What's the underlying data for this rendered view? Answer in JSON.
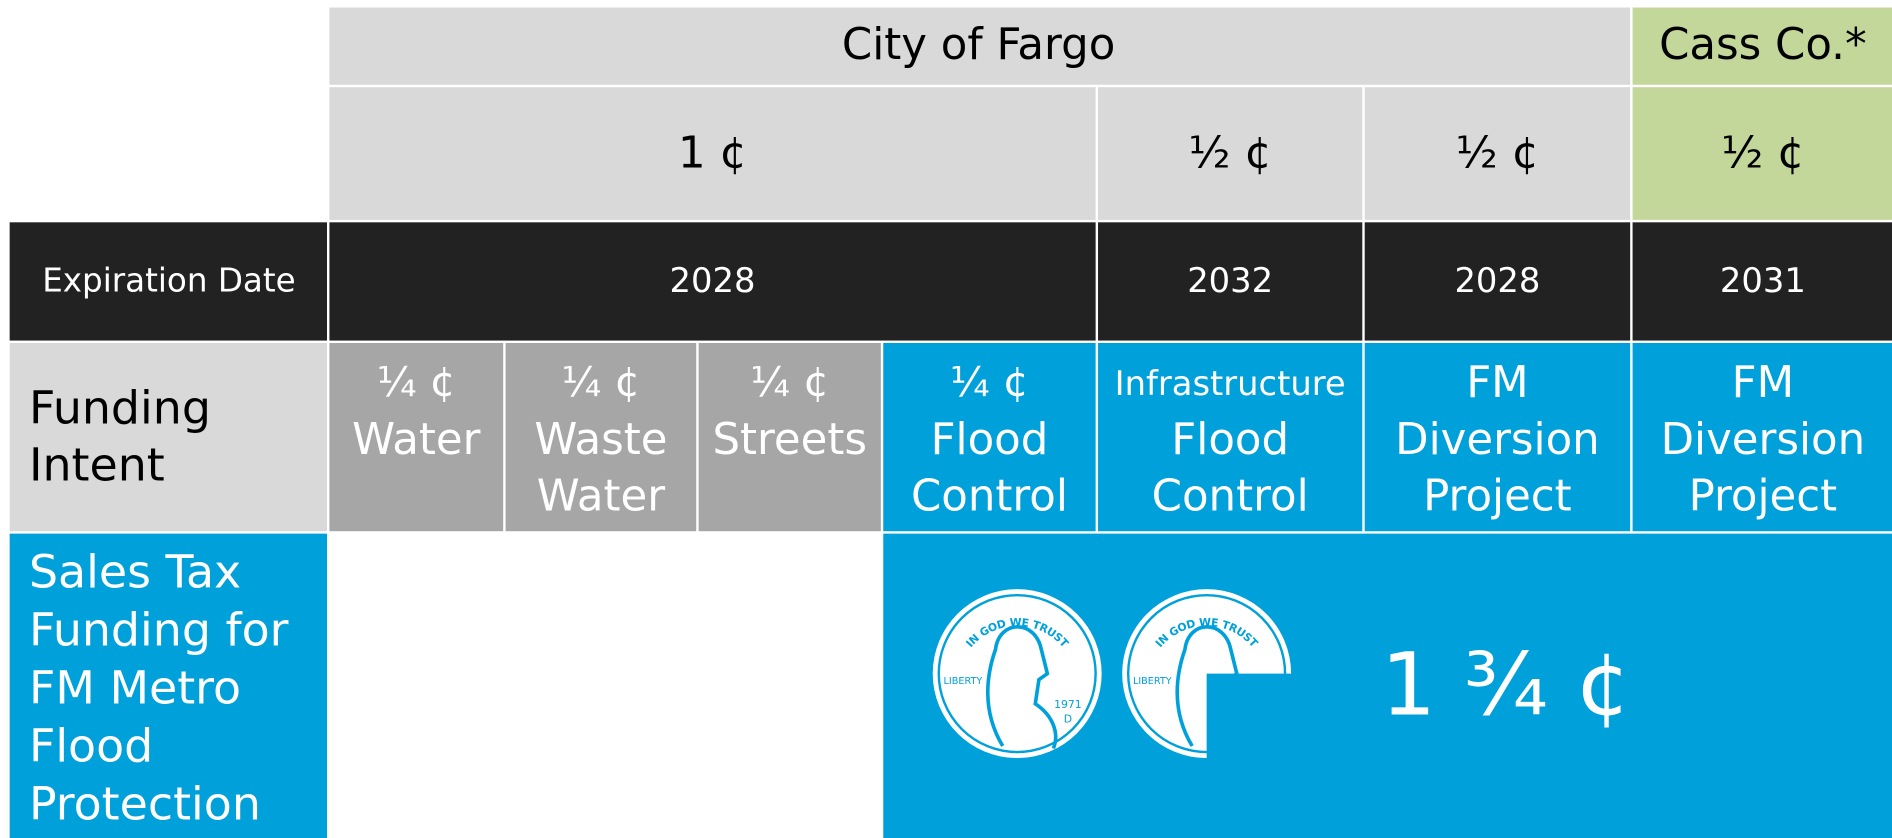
{
  "jurisdictions": [
    "City of Fargo",
    "Cass Co.*"
  ],
  "rates": [
    "1 ¢",
    "½ ¢",
    "½ ¢",
    "½ ¢"
  ],
  "expiration": {
    "label": "Expiration Date",
    "dates": [
      "2028",
      "2032",
      "2028",
      "2031"
    ]
  },
  "funding_intent": {
    "label": [
      "Funding",
      "Intent"
    ],
    "items": [
      [
        "¼ ¢",
        "Water"
      ],
      [
        "¼ ¢",
        "Waste",
        "Water"
      ],
      [
        "¼ ¢",
        "Streets"
      ],
      [
        "¼ ¢",
        "Flood",
        "Control"
      ],
      [
        "Infrastructure",
        "Flood",
        "Control"
      ],
      [
        "FM",
        "Diversion",
        "Project"
      ],
      [
        "FM",
        "Diversion",
        "Project"
      ]
    ]
  },
  "sales_tax": {
    "label": [
      "Sales Tax",
      "Funding for",
      "FM Metro",
      "Flood",
      "Protection"
    ],
    "total": "1 ¾ ¢"
  },
  "penny": {
    "motto": "IN GOD WE TRUST",
    "liberty": "LIBERTY",
    "year": "1971",
    "mint": "D"
  }
}
